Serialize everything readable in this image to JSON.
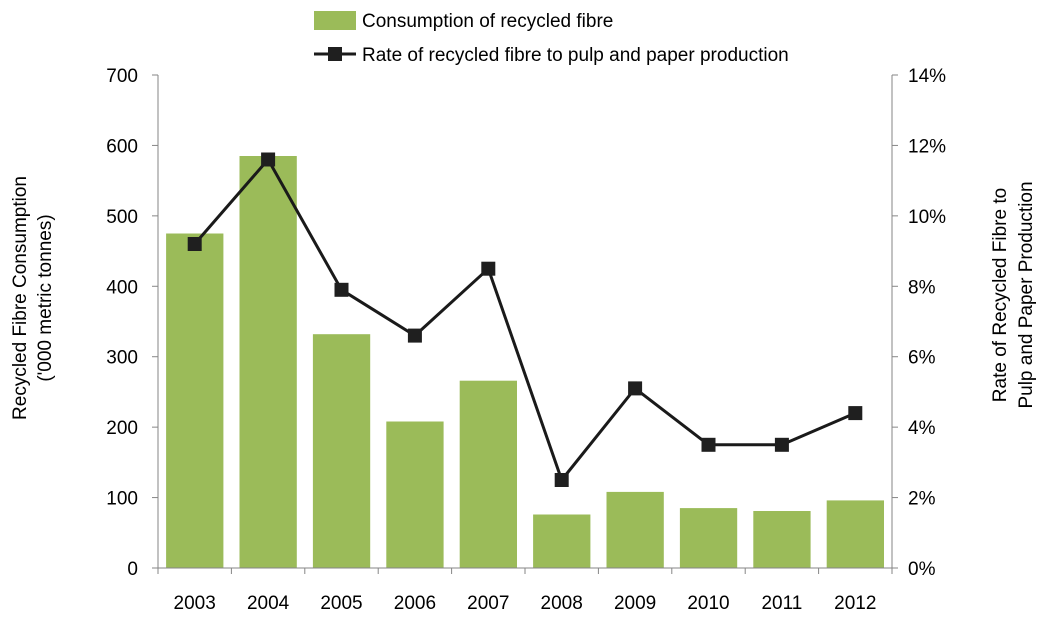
{
  "chart_data": {
    "type": "bar",
    "categories": [
      "2003",
      "2004",
      "2005",
      "2006",
      "2007",
      "2008",
      "2009",
      "2010",
      "2011",
      "2012"
    ],
    "series": [
      {
        "name": "Consumption of recycled fibre",
        "type": "bar",
        "axis": "left",
        "values": [
          475,
          585,
          332,
          208,
          266,
          76,
          108,
          85,
          81,
          96
        ]
      },
      {
        "name": "Rate of recycled fibre to pulp and paper production",
        "type": "line",
        "axis": "right",
        "values": [
          0.092,
          0.116,
          0.079,
          0.066,
          0.085,
          0.025,
          0.051,
          0.035,
          0.035,
          0.044
        ]
      }
    ],
    "ylabel": [
      "Recycled Fibre Consumption",
      "('000 metric tonnes)"
    ],
    "ylabel_right": [
      "Rate of Recycled Fibre to",
      "Pulp and Paper Production"
    ],
    "ylim": [
      0,
      700
    ],
    "ylim_right": [
      0,
      0.14
    ],
    "yticks": [
      "0",
      "100",
      "200",
      "300",
      "400",
      "500",
      "600",
      "700"
    ],
    "yticks_right": [
      "0%",
      "2%",
      "4%",
      "6%",
      "8%",
      "10%",
      "12%",
      "14%"
    ],
    "grid": false,
    "legend": "top",
    "colors": {
      "bar": "#9bbb59",
      "line": "#1a1a1a",
      "marker": "#1f1f1f",
      "axis": "#868686"
    }
  }
}
